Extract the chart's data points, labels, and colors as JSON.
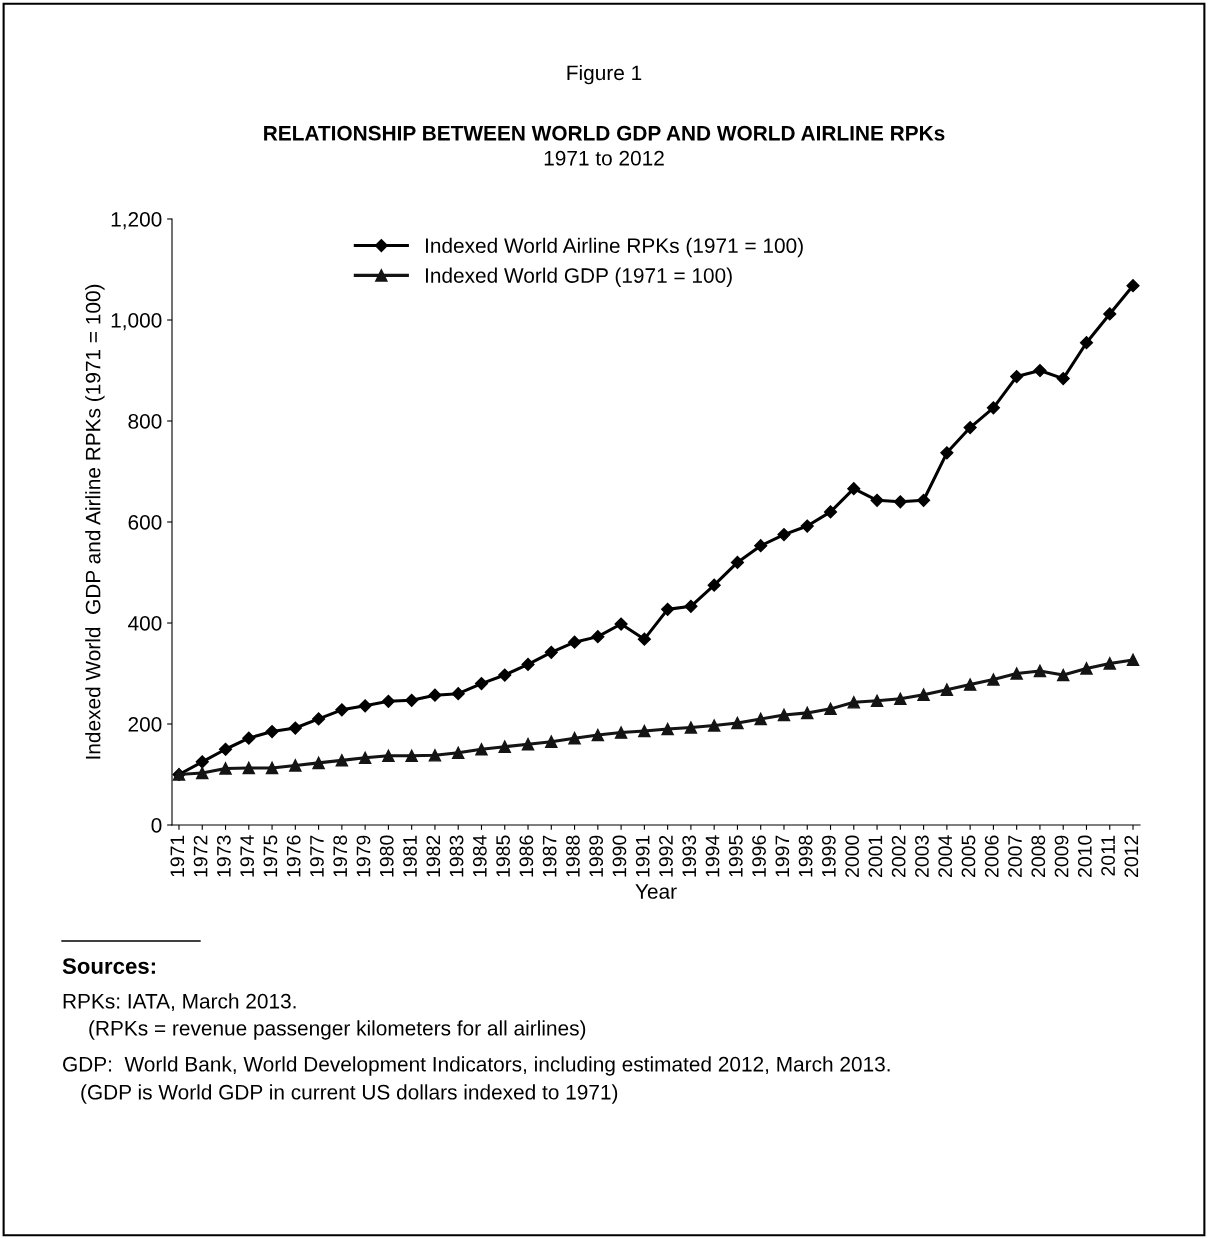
{
  "chart_data": {
    "type": "line",
    "title": "RELATIONSHIP BETWEEN WORLD GDP AND WORLD AIRLINE RPKs",
    "subtitle": "1971 to 2012",
    "xlabel": "Year",
    "ylabel": "Indexed World  GDP and Airline RPKs (1971 = 100)",
    "annotations": [
      "Figure 1",
      "Sources:",
      "RPKs: IATA, March 2013.",
      "(RPKs = revenue passenger kilometers for all airlines)",
      "GDP:  World Bank, World Development Indicators, including estimated 2012, March 2013.",
      "(GDP is World GDP in current US dollars indexed to 1971)"
    ],
    "categories": [
      "1971",
      "1972",
      "1973",
      "1974",
      "1975",
      "1976",
      "1977",
      "1978",
      "1979",
      "1980",
      "1981",
      "1982",
      "1983",
      "1984",
      "1985",
      "1986",
      "1987",
      "1988",
      "1989",
      "1990",
      "1991",
      "1992",
      "1993",
      "1994",
      "1995",
      "1996",
      "1997",
      "1998",
      "1999",
      "2000",
      "2001",
      "2002",
      "2003",
      "2004",
      "2005",
      "2006",
      "2007",
      "2008",
      "2009",
      "2010",
      "2011",
      "2012"
    ],
    "series": [
      {
        "name": "Indexed World Airline RPKs (1971 = 100)",
        "color": "#000000",
        "marker": "diamond",
        "values": [
          100,
          125,
          150,
          172,
          185,
          192,
          210,
          228,
          236,
          245,
          247,
          257,
          260,
          280,
          297,
          318,
          342,
          362,
          373,
          398,
          368,
          427,
          433,
          475,
          520,
          553,
          575,
          592,
          620,
          666,
          643,
          640,
          643,
          737,
          787,
          826,
          888,
          900,
          884,
          955,
          1012,
          1068
        ]
      },
      {
        "name": "Indexed World GDP (1971 = 100)",
        "color": "#141414",
        "marker": "triangle",
        "values": [
          100,
          103,
          112,
          113,
          113,
          118,
          123,
          128,
          133,
          137,
          137,
          138,
          143,
          150,
          155,
          160,
          165,
          172,
          178,
          183,
          186,
          190,
          193,
          197,
          202,
          210,
          218,
          222,
          230,
          243,
          246,
          250,
          258,
          268,
          278,
          288,
          300,
          305,
          297,
          310,
          320,
          327
        ]
      }
    ],
    "ylim": [
      0,
      1200
    ],
    "yticks": [
      0,
      {
        "value": 200,
        "label": "200"
      },
      {
        "value": 400,
        "label": "400"
      },
      {
        "value": 600,
        "label": "600"
      },
      {
        "value": 800,
        "label": "800"
      },
      {
        "value": 1000,
        "label": "1,000"
      },
      {
        "value": 1200,
        "label": "1,200"
      }
    ],
    "grid": false,
    "legend": "top left",
    "line_style": "solid"
  }
}
